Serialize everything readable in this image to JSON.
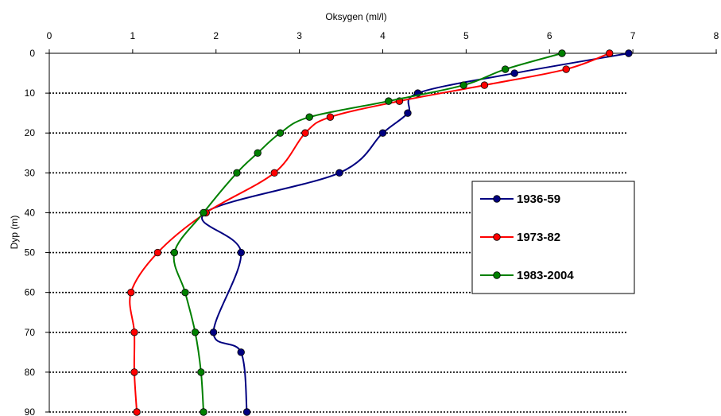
{
  "chart_data": {
    "type": "line",
    "title": "",
    "xlabel": "Oksygen (ml/l)",
    "ylabel": "Dyp (m)",
    "xlim": [
      0,
      8
    ],
    "ylim": [
      0,
      90
    ],
    "x_axis_position": "top",
    "y_axis_inverted": true,
    "x_ticks": [
      "0",
      "1",
      "2",
      "3",
      "4",
      "5",
      "6",
      "7",
      "8"
    ],
    "y_ticks": [
      "0",
      "10",
      "20",
      "30",
      "40",
      "50",
      "60",
      "70",
      "80",
      "90"
    ],
    "grid": "horizontal dotted",
    "legend_position": "right-middle",
    "series": [
      {
        "name": "1936-59",
        "color": "#000080",
        "points": [
          {
            "x": 6.95,
            "y": 0
          },
          {
            "x": 5.58,
            "y": 5
          },
          {
            "x": 4.42,
            "y": 10
          },
          {
            "x": 4.3,
            "y": 15
          },
          {
            "x": 4.0,
            "y": 20
          },
          {
            "x": 3.48,
            "y": 30
          },
          {
            "x": 1.87,
            "y": 40
          },
          {
            "x": 2.3,
            "y": 50
          },
          {
            "x": 1.97,
            "y": 70
          },
          {
            "x": 2.3,
            "y": 75
          },
          {
            "x": 2.37,
            "y": 90
          }
        ]
      },
      {
        "name": "1973-82",
        "color": "#ff0000",
        "points": [
          {
            "x": 6.72,
            "y": 0
          },
          {
            "x": 6.2,
            "y": 4
          },
          {
            "x": 5.22,
            "y": 8
          },
          {
            "x": 4.2,
            "y": 12
          },
          {
            "x": 3.37,
            "y": 16
          },
          {
            "x": 3.07,
            "y": 20
          },
          {
            "x": 2.7,
            "y": 30
          },
          {
            "x": 1.88,
            "y": 40
          },
          {
            "x": 1.3,
            "y": 50
          },
          {
            "x": 0.98,
            "y": 60
          },
          {
            "x": 1.02,
            "y": 70
          },
          {
            "x": 1.02,
            "y": 80
          },
          {
            "x": 1.05,
            "y": 90
          }
        ]
      },
      {
        "name": "1983-2004",
        "color": "#008000",
        "points": [
          {
            "x": 6.15,
            "y": 0
          },
          {
            "x": 5.47,
            "y": 4
          },
          {
            "x": 4.97,
            "y": 8
          },
          {
            "x": 4.07,
            "y": 12
          },
          {
            "x": 3.12,
            "y": 16
          },
          {
            "x": 2.77,
            "y": 20
          },
          {
            "x": 2.5,
            "y": 25
          },
          {
            "x": 2.25,
            "y": 30
          },
          {
            "x": 1.85,
            "y": 40
          },
          {
            "x": 1.5,
            "y": 50
          },
          {
            "x": 1.63,
            "y": 60
          },
          {
            "x": 1.75,
            "y": 70
          },
          {
            "x": 1.82,
            "y": 80
          },
          {
            "x": 1.85,
            "y": 90
          }
        ]
      }
    ]
  }
}
